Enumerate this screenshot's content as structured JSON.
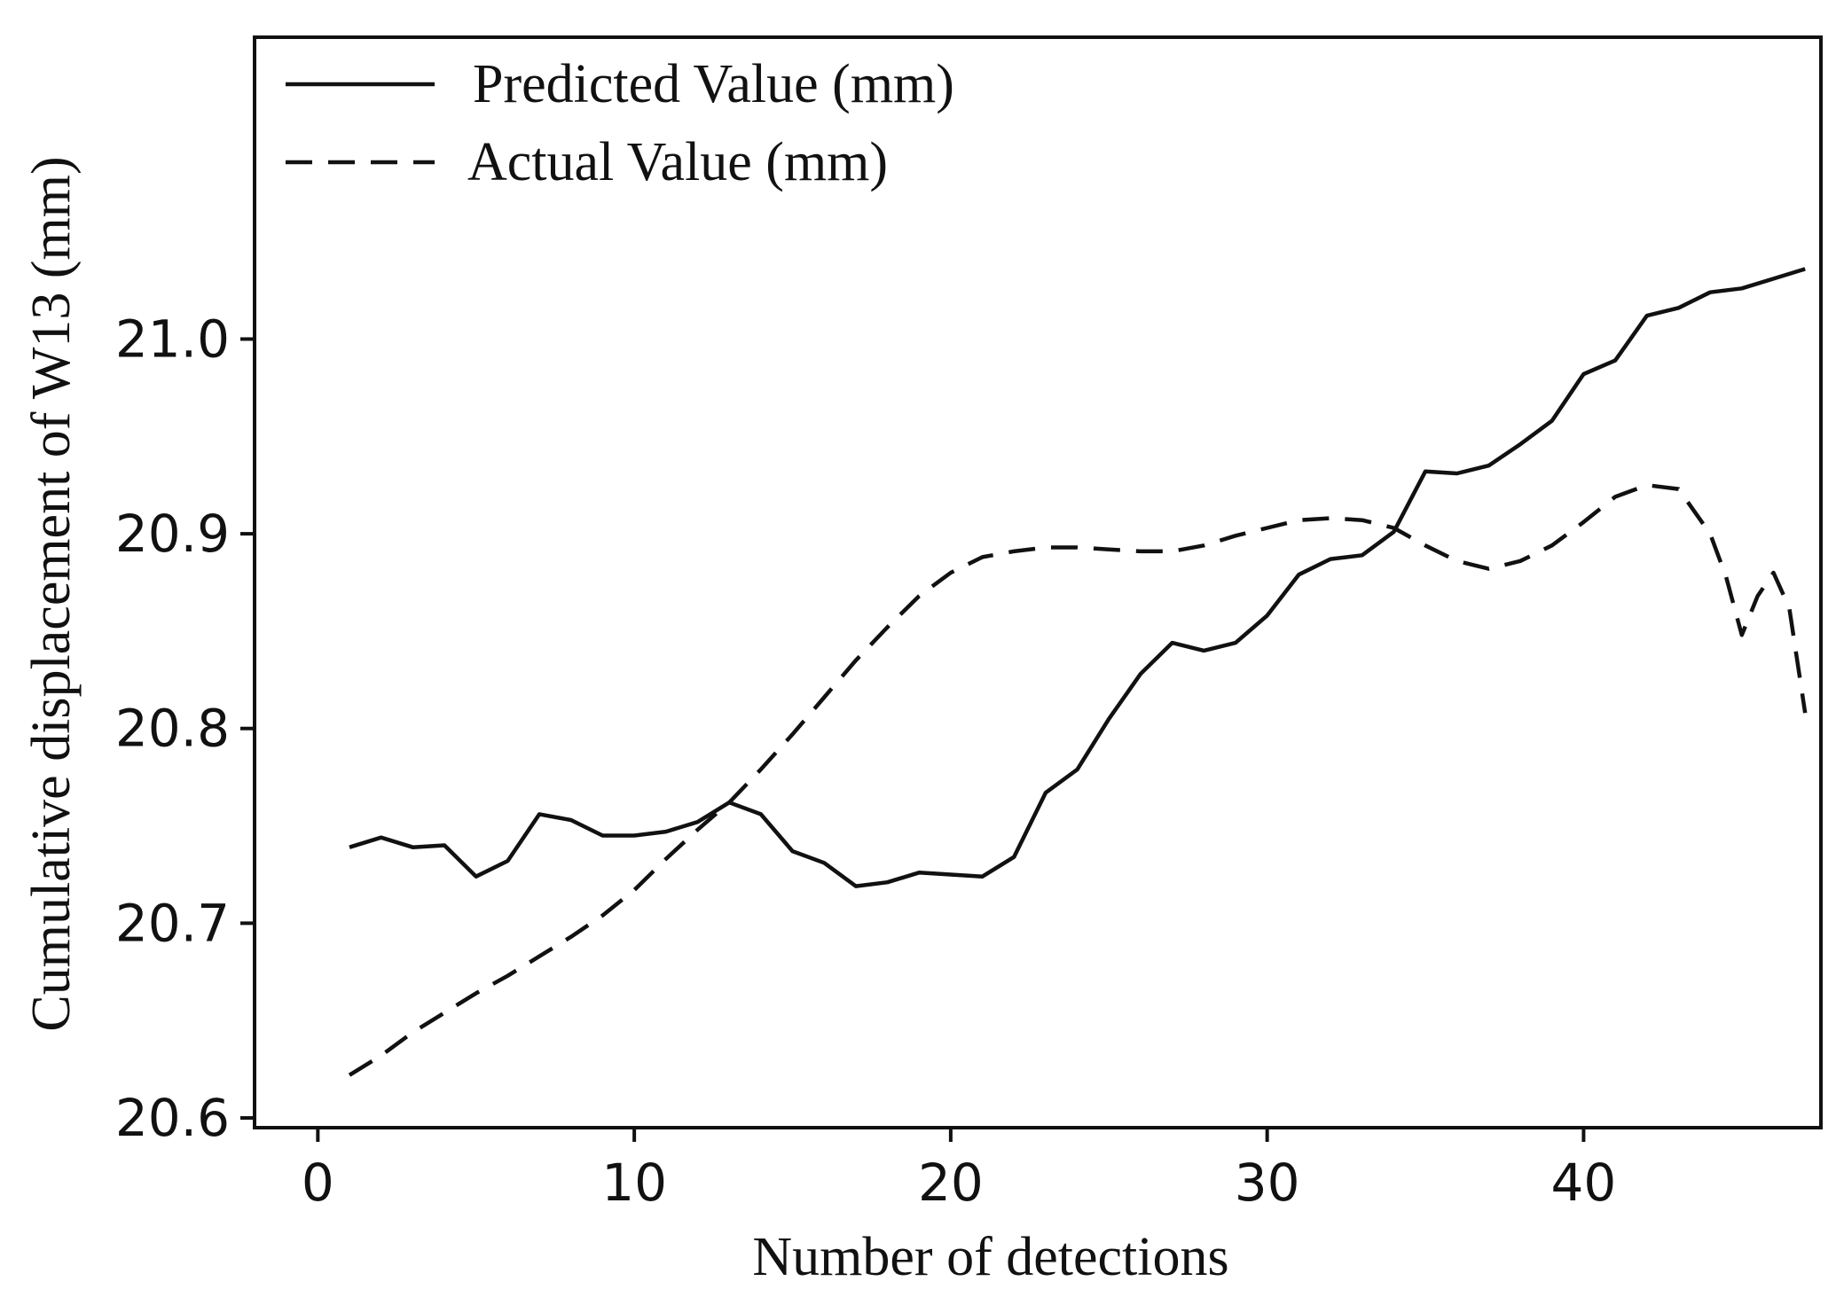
{
  "chart_data": {
    "type": "line",
    "title": "",
    "xlabel": "Number of detections",
    "ylabel": "Cumulative displacement of W13 (mm)",
    "xlim": [
      -2,
      47.5
    ],
    "ylim": [
      20.595,
      21.155
    ],
    "xticks": [
      0,
      10,
      20,
      30,
      40
    ],
    "yticks": [
      20.6,
      20.7,
      20.8,
      20.9,
      21.0
    ],
    "ytick_labels": [
      "20.6",
      "20.7",
      "20.8",
      "20.9",
      "21.0"
    ],
    "grid": false,
    "legend_position": "top-left",
    "series": [
      {
        "name": "Predicted Value (mm)",
        "style": "solid",
        "color": "#111111",
        "x": [
          1,
          2,
          3,
          4,
          5,
          6,
          7,
          8,
          9,
          10,
          11,
          12,
          13,
          14,
          15,
          16,
          17,
          18,
          19,
          20,
          21,
          22,
          23,
          24,
          25,
          26,
          27,
          28,
          29,
          30,
          31,
          32,
          33,
          34,
          35,
          36,
          37,
          38,
          39,
          40,
          41,
          42,
          43,
          44,
          45,
          46,
          47
        ],
        "values": [
          20.739,
          20.744,
          20.739,
          20.74,
          20.724,
          20.732,
          20.756,
          20.753,
          20.745,
          20.745,
          20.747,
          20.752,
          20.762,
          20.756,
          20.737,
          20.731,
          20.719,
          20.721,
          20.726,
          20.725,
          20.724,
          20.734,
          20.767,
          20.779,
          20.805,
          20.828,
          20.844,
          20.84,
          20.844,
          20.858,
          20.879,
          20.887,
          20.889,
          20.901,
          20.932,
          20.931,
          20.935,
          20.946,
          20.958,
          20.982,
          20.989,
          21.012,
          21.016,
          21.024,
          21.026,
          21.031,
          21.036
        ]
      },
      {
        "name": "Actual Value (mm)",
        "style": "dashed",
        "color": "#111111",
        "x": [
          1,
          2,
          3,
          4,
          5,
          6,
          7,
          8,
          9,
          10,
          11,
          12,
          13,
          14,
          15,
          16,
          17,
          18,
          19,
          20,
          21,
          22,
          23,
          24,
          25,
          26,
          27,
          28,
          29,
          30,
          31,
          32,
          33,
          34,
          35,
          36,
          37,
          38,
          39,
          40,
          41,
          42,
          43,
          44,
          44.5,
          45,
          45.5,
          46,
          46.5,
          47
        ],
        "values": [
          20.622,
          20.632,
          20.644,
          20.654,
          20.664,
          20.673,
          20.683,
          20.693,
          20.704,
          20.717,
          20.733,
          20.748,
          20.762,
          20.779,
          20.797,
          20.816,
          20.835,
          20.852,
          20.868,
          20.88,
          20.888,
          20.891,
          20.893,
          20.893,
          20.892,
          20.891,
          20.891,
          20.894,
          20.899,
          20.903,
          20.907,
          20.908,
          20.907,
          20.903,
          20.894,
          20.886,
          20.882,
          20.886,
          20.894,
          20.906,
          20.919,
          20.925,
          20.923,
          20.9,
          20.878,
          20.848,
          20.868,
          20.88,
          20.862,
          20.808
        ]
      }
    ]
  }
}
